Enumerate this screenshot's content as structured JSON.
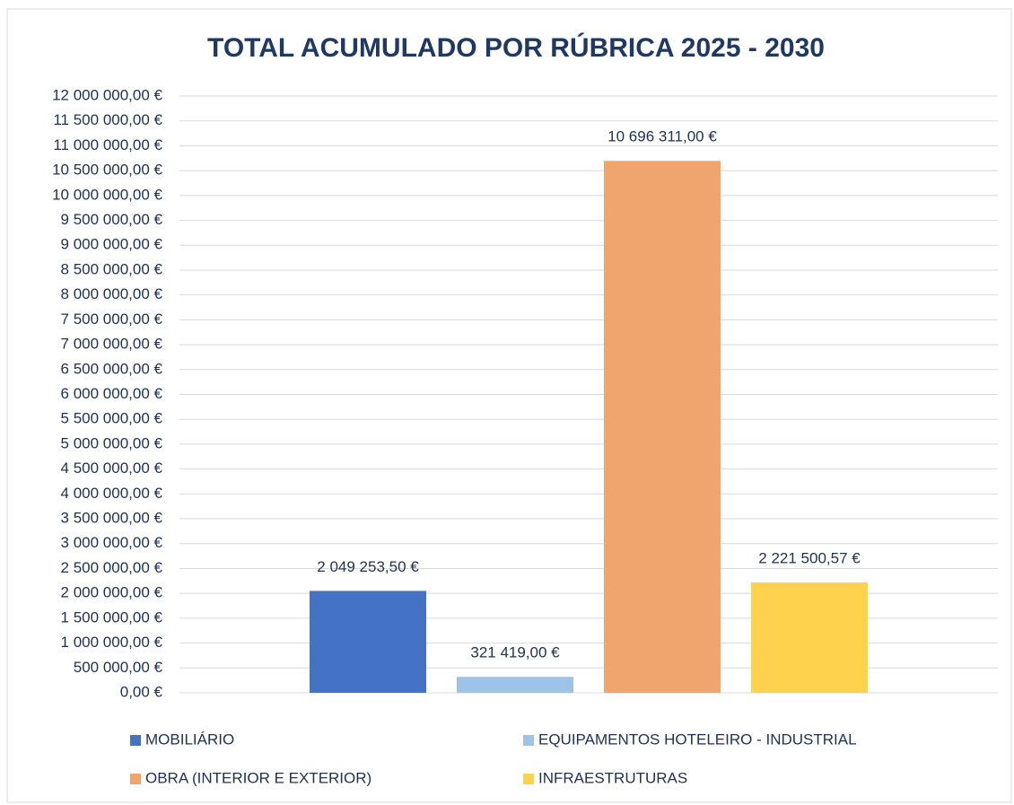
{
  "chart_data": {
    "type": "bar",
    "title": "TOTAL ACUMULADO POR RÚBRICA 2025 - 2030",
    "series": [
      {
        "name": "MOBILIÁRIO",
        "color": "#4472c4",
        "values": [
          2049253.5
        ],
        "value_labels": [
          "2 049 253,50 €"
        ]
      },
      {
        "name": "EQUIPAMENTOS HOTELEIRO - INDUSTRIAL",
        "color": "#9dc3e6",
        "values": [
          321419
        ],
        "value_labels": [
          "321 419,00 €"
        ]
      },
      {
        "name": "OBRA (INTERIOR E EXTERIOR)",
        "color": "#f0a46e",
        "values": [
          10696311
        ],
        "value_labels": [
          "10 696 311,00 €"
        ]
      },
      {
        "name": "INFRAESTRUTURAS",
        "color": "#ffd24d",
        "values": [
          2221500.57
        ],
        "value_labels": [
          "2 221 500,57 €"
        ]
      }
    ],
    "ylim": [
      0,
      12000000
    ],
    "yticks": [
      {
        "value": 0,
        "label": "0,00 €"
      },
      {
        "value": 500000,
        "label": "500 000,00 €"
      },
      {
        "value": 1000000,
        "label": "1 000 000,00 €"
      },
      {
        "value": 1500000,
        "label": "1 500 000,00 €"
      },
      {
        "value": 2000000,
        "label": "2 000 000,00 €"
      },
      {
        "value": 2500000,
        "label": "2 500 000,00 €"
      },
      {
        "value": 3000000,
        "label": "3 000 000,00 €"
      },
      {
        "value": 3500000,
        "label": "3 500 000,00 €"
      },
      {
        "value": 4000000,
        "label": "4 000 000,00 €"
      },
      {
        "value": 4500000,
        "label": "4 500 000,00 €"
      },
      {
        "value": 5000000,
        "label": "5 000 000,00 €"
      },
      {
        "value": 5500000,
        "label": "5 500 000,00 €"
      },
      {
        "value": 6000000,
        "label": "6 000 000,00 €"
      },
      {
        "value": 6500000,
        "label": "6 500 000,00 €"
      },
      {
        "value": 7000000,
        "label": "7 000 000,00 €"
      },
      {
        "value": 7500000,
        "label": "7 500 000,00 €"
      },
      {
        "value": 8000000,
        "label": "8 000 000,00 €"
      },
      {
        "value": 8500000,
        "label": "8 500 000,00 €"
      },
      {
        "value": 9000000,
        "label": "9 000 000,00 €"
      },
      {
        "value": 9500000,
        "label": "9 500 000,00 €"
      },
      {
        "value": 10000000,
        "label": "10 000 000,00 €"
      },
      {
        "value": 10500000,
        "label": "10 500 000,00 €"
      },
      {
        "value": 11000000,
        "label": "11 000 000,00 €"
      },
      {
        "value": 11500000,
        "label": "11 500 000,00 €"
      },
      {
        "value": 12000000,
        "label": "12 000 000,00 €"
      }
    ],
    "grid": true,
    "legend": "bottom"
  }
}
